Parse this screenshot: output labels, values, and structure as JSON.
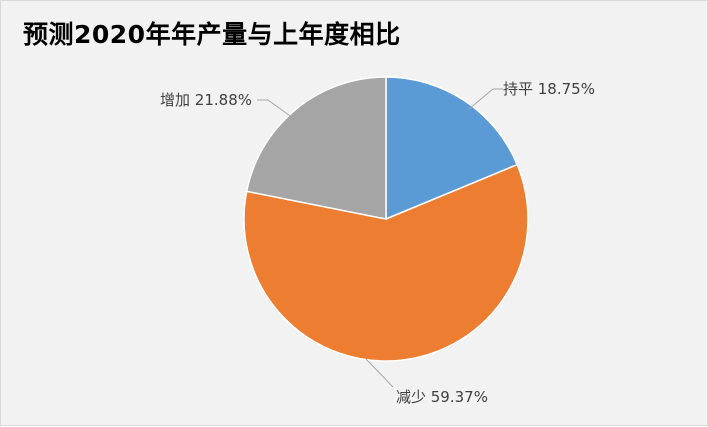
{
  "chart_data": {
    "type": "pie",
    "title": "预测2020年年产量与上年度相比",
    "slices": [
      {
        "label": "持平",
        "value": 18.75,
        "display": "持平 18.75%",
        "color": "#5b9bd5"
      },
      {
        "label": "减少",
        "value": 59.37,
        "display": "减少 59.37%",
        "color": "#ed7d31"
      },
      {
        "label": "增加",
        "value": 21.88,
        "display": "增加 21.88%",
        "color": "#a5a5a5"
      }
    ],
    "start_angle_deg": 0,
    "direction": "clockwise",
    "legend": "none",
    "data_labels": "outside with leader lines"
  }
}
